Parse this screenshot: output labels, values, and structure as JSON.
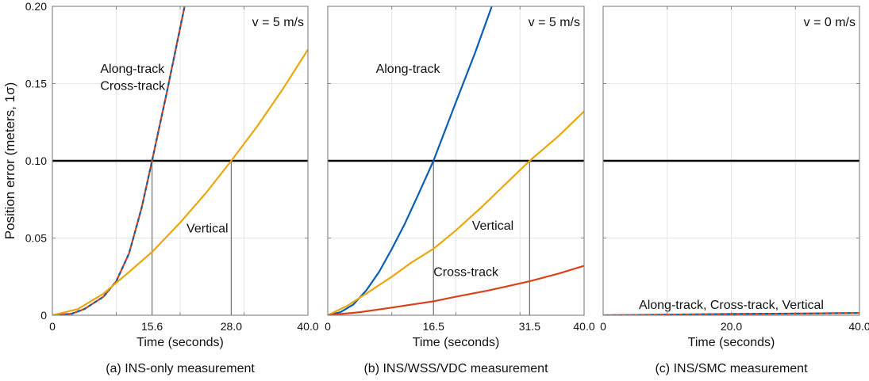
{
  "ylabel": "Position error (meters, 1σ)",
  "colors": {
    "along": "#0a5eb5",
    "cross": "#d9421a",
    "vertical": "#eaa70d",
    "threshold": "#000000",
    "dropline": "#777777",
    "grid": "#e6e6e6"
  },
  "chart_data": [
    {
      "type": "line",
      "caption": "(a) INS-only measurement",
      "xlabel": "Time (seconds)",
      "ylabel": "Position error (meters, 1σ)",
      "xlim": [
        0,
        40
      ],
      "ylim": [
        0,
        0.2
      ],
      "xticks": [
        "0",
        "15.6",
        "28.0",
        "40.0"
      ],
      "xtick_values": [
        0,
        15.6,
        28.0,
        40.0
      ],
      "yticks": [
        "0",
        "0.05",
        "0.10",
        "0.15",
        "0.20"
      ],
      "ytick_values": [
        0,
        0.05,
        0.1,
        0.15,
        0.2
      ],
      "grid": true,
      "threshold": 0.1,
      "droplines": [
        15.6,
        28.0
      ],
      "speed_label": "v = 5 m/s",
      "series": [
        {
          "key": "cross",
          "x": [
            0,
            3,
            5,
            8,
            10,
            12,
            14,
            15.6,
            18,
            20.7
          ],
          "y": [
            0,
            0.001,
            0.004,
            0.012,
            0.022,
            0.04,
            0.07,
            0.1,
            0.146,
            0.2
          ]
        },
        {
          "key": "along",
          "dashed": true,
          "x": [
            0,
            3,
            5,
            8,
            10,
            12,
            14,
            15.6,
            18,
            20.7
          ],
          "y": [
            0,
            0.001,
            0.004,
            0.012,
            0.022,
            0.04,
            0.07,
            0.1,
            0.146,
            0.2
          ]
        },
        {
          "key": "vertical",
          "x": [
            0,
            4,
            8,
            12,
            15.6,
            20,
            24,
            28,
            32,
            36,
            40
          ],
          "y": [
            0,
            0.004,
            0.014,
            0.028,
            0.041,
            0.06,
            0.079,
            0.1,
            0.122,
            0.146,
            0.172
          ]
        }
      ],
      "annotations": [
        {
          "text": "Along-track",
          "x": 7.5,
          "y": 0.157
        },
        {
          "text": "Cross-track",
          "x": 7.5,
          "y": 0.146
        },
        {
          "text": "Vertical",
          "x": 21,
          "y": 0.0535
        }
      ]
    },
    {
      "type": "line",
      "caption": "(b) INS/WSS/VDC measurement",
      "xlabel": "Time (seconds)",
      "xlim": [
        0,
        40
      ],
      "ylim": [
        0,
        0.2
      ],
      "xticks": [
        "0",
        "16.5",
        "31.5",
        "40.0"
      ],
      "xtick_values": [
        0,
        16.5,
        31.5,
        40.0
      ],
      "grid": true,
      "threshold": 0.1,
      "droplines": [
        16.5,
        31.5
      ],
      "speed_label": "v = 5 m/s",
      "series": [
        {
          "key": "along",
          "x": [
            0,
            2,
            4,
            6,
            8,
            10,
            12,
            14,
            16.5,
            20,
            23,
            25.6
          ],
          "y": [
            0,
            0.002,
            0.007,
            0.016,
            0.028,
            0.043,
            0.059,
            0.077,
            0.1,
            0.138,
            0.17,
            0.2
          ]
        },
        {
          "key": "vertical",
          "x": [
            0,
            3,
            6,
            10,
            13,
            16.5,
            20,
            24,
            28,
            31.5,
            36,
            40
          ],
          "y": [
            0,
            0.006,
            0.014,
            0.025,
            0.034,
            0.043,
            0.055,
            0.07,
            0.086,
            0.1,
            0.116,
            0.132
          ]
        },
        {
          "key": "cross",
          "x": [
            0,
            5,
            10,
            16.5,
            20,
            25,
            31.5,
            36,
            40
          ],
          "y": [
            0,
            0.002,
            0.005,
            0.009,
            0.012,
            0.016,
            0.022,
            0.027,
            0.032
          ]
        }
      ],
      "annotations": [
        {
          "text": "Along-track",
          "x": 7.5,
          "y": 0.157
        },
        {
          "text": "Vertical",
          "x": 22.5,
          "y": 0.0555
        },
        {
          "text": "Cross-track",
          "x": 16.5,
          "y": 0.0255
        }
      ]
    },
    {
      "type": "line",
      "caption": "(c) INS/SMC measurement",
      "xlabel": "Time (seconds)",
      "xlim": [
        0,
        40
      ],
      "ylim": [
        0,
        0.2
      ],
      "xticks": [
        "0",
        "20.0",
        "40.0"
      ],
      "xtick_values": [
        0,
        20.0,
        40.0
      ],
      "grid": true,
      "threshold": 0.1,
      "droplines": [],
      "speed_label": "v = 0 m/s",
      "series": [
        {
          "key": "vertical",
          "x": [
            0,
            10,
            20,
            30,
            40
          ],
          "y": [
            0,
            0.0004,
            0.0008,
            0.0011,
            0.0015
          ]
        },
        {
          "key": "cross",
          "dashed": true,
          "x": [
            0,
            10,
            20,
            30,
            40
          ],
          "y": [
            0,
            0.0004,
            0.0008,
            0.0011,
            0.0015
          ]
        },
        {
          "key": "along",
          "dashed": true,
          "dashoffset": 4,
          "x": [
            0,
            10,
            20,
            30,
            40
          ],
          "y": [
            0,
            0.0004,
            0.0008,
            0.0011,
            0.0015
          ]
        }
      ],
      "annotations": [
        {
          "text": "Along-track, Cross-track, Vertical",
          "x": 20,
          "y": 0.004
        }
      ]
    }
  ]
}
